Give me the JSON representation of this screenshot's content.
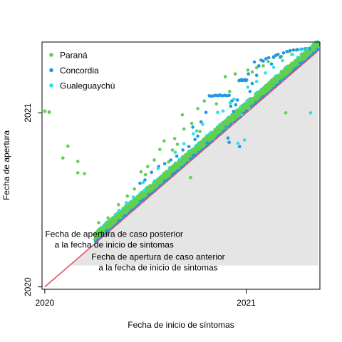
{
  "chart_data": {
    "type": "scatter",
    "xlabel": "Fecha de inicio de síntomas",
    "ylabel": "Fecha de apertura",
    "x_axis": {
      "type": "date",
      "ticks": [
        "2020",
        "2021"
      ],
      "xlim": [
        "2019-12-27",
        "2021-05-15"
      ]
    },
    "y_axis": {
      "type": "date",
      "ticks": [
        "2020",
        "2021"
      ],
      "ylim": [
        "2019-12-27",
        "2021-05-30"
      ]
    },
    "grid": false,
    "legend_position": "top-left",
    "series": [
      {
        "name": "Paraná",
        "color": "#61D04F",
        "points": [
          [
            "2020-01-01",
            "2021-01-04"
          ],
          [
            "2020-01-01",
            "2021-01-05"
          ],
          [
            "2020-01-09",
            "2021-01-02"
          ],
          [
            "2020-01-09",
            "2021-01-03"
          ],
          [
            "2020-02-12",
            "2020-10-23"
          ],
          [
            "2020-02-03",
            "2020-09-28"
          ],
          [
            "2020-03-01",
            "2020-09-21"
          ],
          [
            "2020-03-01",
            "2020-08-28"
          ],
          [
            "2020-03-13",
            "2020-08-26"
          ],
          [
            "2020-04-08",
            "2020-05-15"
          ],
          [
            "2020-04-25",
            "2020-05-25"
          ],
          [
            "2020-05-14",
            "2020-06-22"
          ],
          [
            "2020-05-30",
            "2020-07-10"
          ],
          [
            "2020-06-12",
            "2020-07-25"
          ],
          [
            "2020-06-24",
            "2020-08-30"
          ],
          [
            "2020-07-02",
            "2020-08-24"
          ],
          [
            "2020-07-06",
            "2020-09-10"
          ],
          [
            "2020-07-18",
            "2020-09-24"
          ],
          [
            "2020-07-28",
            "2020-10-16"
          ],
          [
            "2020-08-05",
            "2020-11-03"
          ],
          [
            "2020-08-13",
            "2020-09-20"
          ],
          [
            "2020-08-20",
            "2020-10-15"
          ],
          [
            "2020-08-24",
            "2020-11-08"
          ],
          [
            "2020-08-29",
            "2020-10-27"
          ],
          [
            "2020-09-07",
            "2020-12-28"
          ],
          [
            "2020-09-10",
            "2020-11-28"
          ],
          [
            "2020-09-22",
            "2020-08-18"
          ],
          [
            "2020-09-24",
            "2020-12-10"
          ],
          [
            "2020-10-05",
            "2021-01-10"
          ],
          [
            "2020-10-09",
            "2020-11-23"
          ],
          [
            "2020-10-17",
            "2021-01-26"
          ],
          [
            "2020-10-26",
            "2021-02-06"
          ],
          [
            "2020-11-08",
            "2021-01-20"
          ],
          [
            "2020-11-14",
            "2021-02-08"
          ],
          [
            "2020-11-24",
            "2021-03-18"
          ],
          [
            "2020-12-02",
            "2021-02-15"
          ],
          [
            "2020-12-12",
            "2021-03-24"
          ],
          [
            "2020-12-20",
            "2021-03-10"
          ],
          [
            "2021-01-04",
            "2021-04-01"
          ],
          [
            "2021-01-12",
            "2021-03-28"
          ],
          [
            "2021-01-20",
            "2021-04-06"
          ],
          [
            "2021-02-01",
            "2021-04-10"
          ],
          [
            "2021-02-10",
            "2021-04-19"
          ],
          [
            "2021-02-20",
            "2021-04-27"
          ],
          [
            "2021-03-06",
            "2021-04-30"
          ],
          [
            "2021-03-14",
            "2021-01-01"
          ],
          [
            "2021-03-20",
            "2021-05-10"
          ],
          [
            "2021-03-26",
            "2021-05-04"
          ],
          [
            "2021-04-02",
            "2021-05-13"
          ],
          [
            "2021-04-10",
            "2021-05-15"
          ],
          [
            "2021-04-18",
            "2021-05-16"
          ],
          [
            "2021-04-24",
            "2021-05-16"
          ]
        ]
      },
      {
        "name": "Concordia",
        "color": "#2297E6",
        "points": [
          [
            "2020-06-22",
            "2020-08-06"
          ],
          [
            "2020-07-01",
            "2020-08-13"
          ],
          [
            "2020-07-13",
            "2020-08-29"
          ],
          [
            "2020-07-26",
            "2020-09-10"
          ],
          [
            "2020-08-06",
            "2020-09-16"
          ],
          [
            "2020-08-17",
            "2020-09-24"
          ],
          [
            "2020-08-28",
            "2020-10-02"
          ],
          [
            "2020-09-08",
            "2020-10-15"
          ],
          [
            "2020-09-19",
            "2020-10-22"
          ],
          [
            "2020-09-26",
            "2020-12-02"
          ],
          [
            "2020-09-30",
            "2020-11-06"
          ],
          [
            "2020-10-05",
            "2020-11-13"
          ],
          [
            "2020-10-11",
            "2020-12-13"
          ],
          [
            "2020-10-20",
            "2021-01-02"
          ],
          [
            "2020-10-26",
            "2021-02-06"
          ],
          [
            "2020-10-30",
            "2021-02-05"
          ],
          [
            "2020-11-03",
            "2021-02-06"
          ],
          [
            "2020-11-07",
            "2021-02-07"
          ],
          [
            "2020-11-11",
            "2021-02-06"
          ],
          [
            "2020-11-15",
            "2021-02-07"
          ],
          [
            "2020-11-19",
            "2021-02-06"
          ],
          [
            "2020-11-23",
            "2021-02-07"
          ],
          [
            "2020-11-27",
            "2021-02-06"
          ],
          [
            "2020-12-01",
            "2021-02-07"
          ],
          [
            "2020-12-04",
            "2021-01-15"
          ],
          [
            "2020-12-06",
            "2021-01-26"
          ],
          [
            "2020-12-09",
            "2021-01-04"
          ],
          [
            "2020-12-13",
            "2021-01-18"
          ],
          [
            "2020-12-16",
            "2021-01-28"
          ],
          [
            "2020-12-19",
            "2021-03-10"
          ],
          [
            "2020-12-22",
            "2021-03-11"
          ],
          [
            "2020-12-24",
            "2021-03-12"
          ],
          [
            "2020-12-25",
            "2021-03-10"
          ],
          [
            "2020-12-28",
            "2021-03-11"
          ],
          [
            "2020-12-30",
            "2021-03-12"
          ],
          [
            "2020-12-31",
            "2021-03-10"
          ],
          [
            "2021-01-02",
            "2021-03-11"
          ],
          [
            "2021-01-05",
            "2021-03-24"
          ],
          [
            "2021-01-08",
            "2021-02-15"
          ],
          [
            "2021-01-12",
            "2021-03-04"
          ],
          [
            "2021-01-16",
            "2021-04-18"
          ],
          [
            "2021-01-20",
            "2021-03-21"
          ],
          [
            "2021-01-24",
            "2021-04-10"
          ],
          [
            "2021-01-28",
            "2021-04-22"
          ],
          [
            "2021-02-01",
            "2021-04-20"
          ],
          [
            "2021-02-06",
            "2021-04-25"
          ],
          [
            "2021-02-11",
            "2021-04-27"
          ],
          [
            "2021-02-16",
            "2021-04-14"
          ],
          [
            "2021-02-20",
            "2021-04-29"
          ],
          [
            "2021-02-24",
            "2021-05-02"
          ],
          [
            "2021-02-28",
            "2021-05-04"
          ],
          [
            "2021-03-04",
            "2021-04-28"
          ],
          [
            "2021-03-10",
            "2021-05-07"
          ],
          [
            "2021-03-16",
            "2021-05-10"
          ],
          [
            "2021-03-22",
            "2021-05-12"
          ],
          [
            "2021-03-28",
            "2021-05-13"
          ],
          [
            "2021-04-04",
            "2021-05-14"
          ],
          [
            "2021-04-12",
            "2021-05-15"
          ],
          [
            "2021-04-20",
            "2021-05-16"
          ],
          [
            "2021-04-26",
            "2021-05-16"
          ],
          [
            "2020-10-22",
            "2020-10-30"
          ],
          [
            "2020-12-20",
            "2020-10-22"
          ],
          [
            "2020-12-01",
            "2020-10-31"
          ],
          [
            "2020-11-29",
            "2020-11-09"
          ]
        ]
      },
      {
        "name": "Gualeguaychú",
        "color": "#28E2E5",
        "points": [
          [
            "2020-04-25",
            "2020-04-20"
          ],
          [
            "2021-04-28",
            "2021-01-01"
          ],
          [
            "2020-12-29",
            "2020-11-05"
          ],
          [
            "2020-12-17",
            "2020-10-29"
          ],
          [
            "2020-10-14",
            "2020-12-08"
          ],
          [
            "2020-11-10",
            "2021-01-02"
          ],
          [
            "2020-12-03",
            "2021-01-22"
          ],
          [
            "2020-09-27",
            "2020-11-18"
          ],
          [
            "2020-10-03",
            "2020-11-24"
          ],
          [
            "2020-11-20",
            "2021-01-05"
          ],
          [
            "2020-12-10",
            "2021-01-30"
          ],
          [
            "2021-01-04",
            "2021-02-24"
          ],
          [
            "2021-01-20",
            "2021-03-08"
          ],
          [
            "2021-02-05",
            "2021-03-26"
          ],
          [
            "2021-02-20",
            "2021-04-07"
          ],
          [
            "2021-03-08",
            "2021-04-21"
          ],
          [
            "2021-03-25",
            "2021-05-04"
          ],
          [
            "2021-04-10",
            "2021-05-14"
          ],
          [
            "2021-04-22",
            "2021-05-16"
          ],
          [
            "2020-08-25",
            "2020-10-10"
          ],
          [
            "2020-09-10",
            "2020-10-28"
          ],
          [
            "2020-07-25",
            "2020-09-06"
          ],
          [
            "2020-06-28",
            "2020-08-08"
          ],
          [
            "2020-06-10",
            "2020-07-08"
          ],
          [
            "2020-05-28",
            "2020-06-26"
          ],
          [
            "2020-05-15",
            "2020-06-10"
          ]
        ]
      }
    ],
    "dense_band": {
      "x_start": "2020-04-01",
      "x_end": "2021-05-12",
      "band_days": [
        {
          "series": "Gualeguaychú",
          "lower": 2,
          "upper": 24
        },
        {
          "series": "Concordia",
          "lower": 2,
          "upper": 14
        },
        {
          "series": "Paraná",
          "lower": 8,
          "upper": 22
        }
      ]
    },
    "reference_line": {
      "from": [
        "2020-01-01",
        "2020-01-01"
      ],
      "to": [
        "2021-05-12",
        "2021-05-12"
      ],
      "color": "#DF536B"
    },
    "shaded_region": {
      "description": "Fecha de apertura de caso anterior a la fecha de inicio de sintomas",
      "color": "#e5e5e5"
    },
    "annotations": [
      {
        "lines": [
          "Fecha de apertura de caso posterior",
          "a la fecha de inicio de sintomas"
        ],
        "x": "2020-05-06",
        "y": "2020-04-15"
      },
      {
        "lines": [
          "Fecha de apertura de caso anterior",
          "a la fecha de inicio de sintomas"
        ],
        "x": "2020-07-25",
        "y": "2020-02-27"
      }
    ]
  }
}
